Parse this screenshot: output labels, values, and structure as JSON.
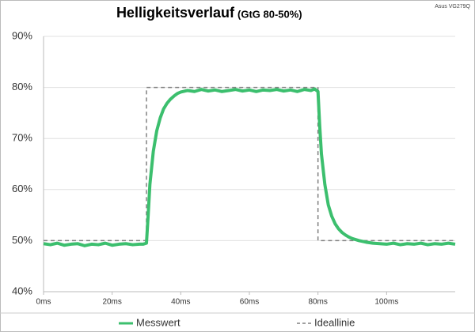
{
  "chart_data": {
    "type": "line",
    "title": "Helligkeitsverlauf",
    "subtitle": "(GtG 80-50%)",
    "annotation": "Asus VG279Q",
    "xlim": [
      0,
      120
    ],
    "xticks": [
      {
        "value": 0,
        "label": "0ms"
      },
      {
        "value": 20,
        "label": "20ms"
      },
      {
        "value": 40,
        "label": "40ms"
      },
      {
        "value": 60,
        "label": "60ms"
      },
      {
        "value": 80,
        "label": "80ms"
      },
      {
        "value": 100,
        "label": "100ms"
      }
    ],
    "ylim": [
      40,
      90
    ],
    "yticks": [
      {
        "value": 40,
        "label": "40%"
      },
      {
        "value": 50,
        "label": "50%"
      },
      {
        "value": 60,
        "label": "60%"
      },
      {
        "value": 70,
        "label": "70%"
      },
      {
        "value": 80,
        "label": "80%"
      },
      {
        "value": 90,
        "label": "90%"
      }
    ],
    "grid": true,
    "legend": "bottom",
    "series": [
      {
        "name": "Messwert",
        "color": "#3cbf6e",
        "style": "solid",
        "x": [
          0,
          2,
          4,
          6,
          8,
          10,
          12,
          14,
          16,
          18,
          20,
          22,
          24,
          26,
          28,
          29,
          30,
          30.5,
          31,
          32,
          33,
          34,
          35,
          36,
          37,
          38,
          39,
          40,
          42,
          44,
          46,
          48,
          50,
          52,
          54,
          56,
          58,
          60,
          62,
          64,
          66,
          68,
          70,
          72,
          74,
          76,
          78,
          79,
          80,
          80.5,
          81,
          82,
          83,
          84,
          85,
          86,
          87,
          88,
          89,
          90,
          92,
          94,
          96,
          98,
          100,
          102,
          104,
          106,
          108,
          110,
          112,
          114,
          116,
          118,
          120
        ],
        "values": [
          49.4,
          49.2,
          49.5,
          49.1,
          49.3,
          49.4,
          49.0,
          49.3,
          49.2,
          49.5,
          49.1,
          49.3,
          49.4,
          49.2,
          49.3,
          49.3,
          49.5,
          55,
          61,
          67.5,
          71.5,
          74,
          75.8,
          76.9,
          77.7,
          78.3,
          78.8,
          79.1,
          79.4,
          79.2,
          79.6,
          79.3,
          79.5,
          79.2,
          79.4,
          79.6,
          79.3,
          79.5,
          79.2,
          79.5,
          79.4,
          79.6,
          79.3,
          79.5,
          79.2,
          79.6,
          79.4,
          79.7,
          79.2,
          72.5,
          67,
          61,
          57,
          54.8,
          53.3,
          52.3,
          51.6,
          51.1,
          50.7,
          50.4,
          50.0,
          49.7,
          49.5,
          49.4,
          49.3,
          49.5,
          49.2,
          49.4,
          49.3,
          49.5,
          49.2,
          49.4,
          49.3,
          49.5,
          49.3
        ]
      },
      {
        "name": "Ideallinie",
        "color": "#808080",
        "style": "dashed",
        "x": [
          0,
          30,
          30,
          80,
          80,
          120
        ],
        "values": [
          50,
          50,
          80,
          80,
          50,
          50
        ]
      }
    ]
  }
}
